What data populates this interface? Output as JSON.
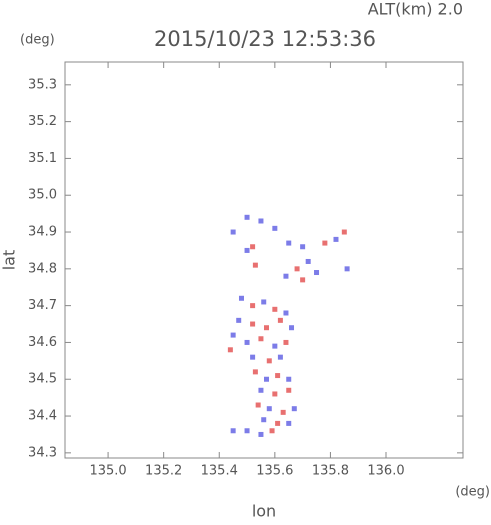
{
  "chart_data": {
    "type": "scatter",
    "title": "2015/10/23 12:53:36",
    "subtitle": "ALT(km) 2.0",
    "y_unit": "(deg)",
    "x_unit": "(deg)",
    "x_label": "lon",
    "y_label": "lat",
    "xlim": [
      134.845,
      136.277
    ],
    "ylim": [
      34.286,
      35.362
    ],
    "xticks": [
      {
        "value": 135,
        "label": "135.0"
      },
      135.2,
      135.4,
      135.6,
      135.8,
      {
        "value": 136,
        "label": "136.0"
      }
    ],
    "yticks": [
      34.3,
      34.4,
      34.5,
      34.6,
      34.7,
      34.8,
      34.9,
      {
        "value": 35,
        "label": "35.0"
      },
      35.1,
      35.2,
      35.3
    ],
    "x": [
      135.45,
      135.5,
      135.55,
      135.6,
      135.52,
      135.5,
      135.53,
      135.65,
      135.7,
      135.72,
      135.68,
      135.75,
      135.78,
      135.82,
      135.85,
      135.86,
      135.64,
      135.7,
      135.48,
      135.52,
      135.56,
      135.6,
      135.64,
      135.47,
      135.52,
      135.57,
      135.62,
      135.66,
      135.45,
      135.5,
      135.55,
      135.6,
      135.64,
      135.44,
      135.52,
      135.58,
      135.62,
      135.53,
      135.57,
      135.61,
      135.65,
      135.55,
      135.6,
      135.65,
      135.54,
      135.58,
      135.63,
      135.67,
      135.56,
      135.61,
      135.65,
      135.45,
      135.5,
      135.55,
      135.59
    ],
    "y": [
      34.9,
      34.94,
      34.93,
      34.91,
      34.86,
      34.85,
      34.81,
      34.87,
      34.86,
      34.82,
      34.8,
      34.79,
      34.87,
      34.88,
      34.9,
      34.8,
      34.78,
      34.77,
      34.72,
      34.7,
      34.71,
      34.69,
      34.68,
      34.66,
      34.65,
      34.64,
      34.66,
      34.64,
      34.62,
      34.6,
      34.61,
      34.59,
      34.6,
      34.58,
      34.56,
      34.55,
      34.56,
      34.52,
      34.5,
      34.51,
      34.5,
      34.47,
      34.46,
      34.47,
      34.43,
      34.42,
      34.41,
      34.42,
      34.39,
      34.38,
      34.38,
      34.36,
      34.36,
      34.35,
      34.36
    ],
    "colors": [
      "#5050e0",
      "#5050e0",
      "#5050e0",
      "#5050e0",
      "#e04040",
      "#5050e0",
      "#e04040",
      "#5050e0",
      "#5050e0",
      "#5050e0",
      "#e04040",
      "#5050e0",
      "#e04040",
      "#5050e0",
      "#e04040",
      "#5050e0",
      "#5050e0",
      "#e04040",
      "#5050e0",
      "#e04040",
      "#5050e0",
      "#e04040",
      "#5050e0",
      "#5050e0",
      "#e04040",
      "#e04040",
      "#e04040",
      "#5050e0",
      "#5050e0",
      "#5050e0",
      "#e04040",
      "#5050e0",
      "#e04040",
      "#e04040",
      "#5050e0",
      "#e04040",
      "#5050e0",
      "#e04040",
      "#5050e0",
      "#e04040",
      "#5050e0",
      "#5050e0",
      "#e04040",
      "#e04040",
      "#e04040",
      "#5050e0",
      "#e04040",
      "#5050e0",
      "#5050e0",
      "#e04040",
      "#5050e0",
      "#5050e0",
      "#5050e0",
      "#5050e0",
      "#e04040"
    ]
  }
}
